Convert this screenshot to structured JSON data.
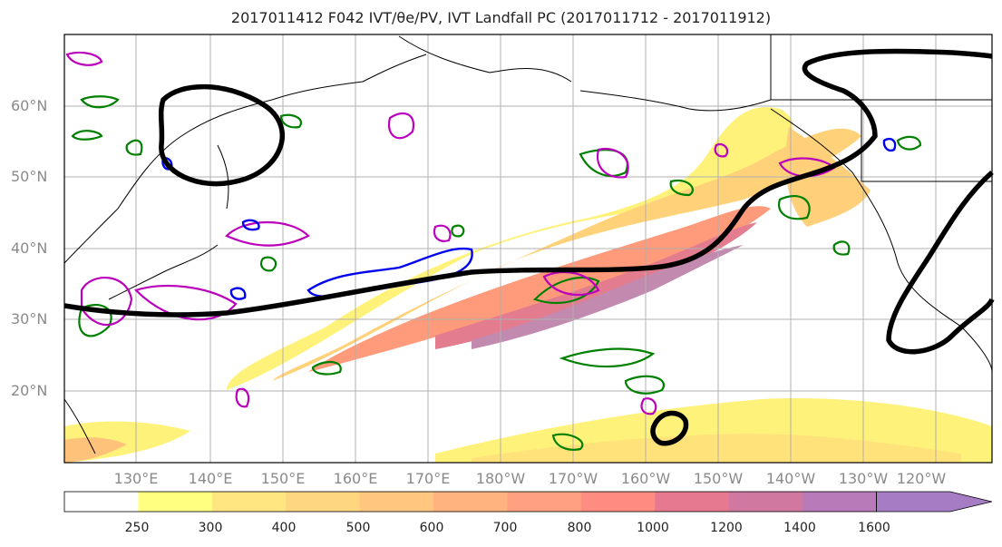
{
  "title": "2017011412 F042 IVT/θe/PV, IVT Landfall PC (2017011712 - 2017011912)",
  "lat_labels": [
    "60°N",
    "50°N",
    "40°N",
    "30°N",
    "20°N"
  ],
  "lon_labels": [
    "130°E",
    "140°E",
    "150°E",
    "160°E",
    "170°E",
    "180°W",
    "170°W",
    "160°W",
    "150°W",
    "140°W",
    "130°W",
    "120°W"
  ],
  "colorbar": {
    "labels": [
      "250",
      "300",
      "400",
      "500",
      "600",
      "700",
      "800",
      "1000",
      "1200",
      "1400",
      "1600"
    ],
    "colors": [
      "#ffffff",
      "#ffff80",
      "#ffe680",
      "#ffd680",
      "#ffc680",
      "#ffb480",
      "#ffa080",
      "#ff8c80",
      "#e67890",
      "#d078a0",
      "#b87ab8",
      "#a67cc4"
    ]
  },
  "legend_colors": {
    "pv": "#008000",
    "theta_e": "#bb00bb",
    "blue": "#0000ee",
    "pc": "#000000"
  }
}
